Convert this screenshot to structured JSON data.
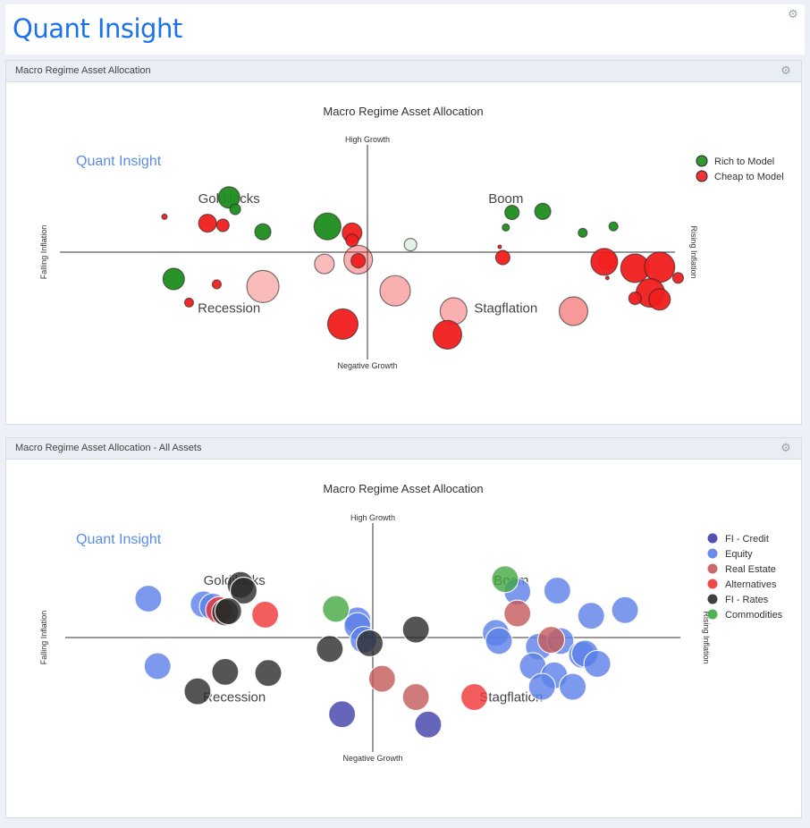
{
  "app": {
    "logo": "Quant Insight"
  },
  "panels": [
    {
      "title": "Macro Regime Asset Allocation"
    },
    {
      "title": "Macro Regime Asset Allocation - All Assets"
    }
  ],
  "chart_data": [
    {
      "type": "scatter",
      "title": "Macro Regime Asset Allocation",
      "watermark": "Quant Insight",
      "axis_labels": {
        "top": "High Growth",
        "bottom": "Negative Growth",
        "left": "Falling Inflation",
        "right": "Rising Inflation"
      },
      "quadrants": [
        "Goldilocks",
        "Boom",
        "Recession",
        "Stagflation"
      ],
      "xlim": [
        -1,
        1
      ],
      "ylim": [
        -1,
        1
      ],
      "legend_position": "top-right",
      "series": [
        {
          "name": "Rich to Model",
          "color": "#1e8c1e",
          "points": [
            {
              "x": -0.45,
              "y": 0.51,
              "s": 12
            },
            {
              "x": -0.43,
              "y": 0.4,
              "s": 6
            },
            {
              "x": -0.34,
              "y": 0.19,
              "s": 9
            },
            {
              "x": -0.13,
              "y": 0.24,
              "s": 15
            },
            {
              "x": 0.14,
              "y": 0.07,
              "s": 7,
              "a": 0.12
            },
            {
              "x": 0.47,
              "y": 0.37,
              "s": 8
            },
            {
              "x": 0.57,
              "y": 0.38,
              "s": 9
            },
            {
              "x": 0.7,
              "y": 0.18,
              "s": 5
            },
            {
              "x": 0.8,
              "y": 0.24,
              "s": 5
            },
            {
              "x": 0.45,
              "y": 0.23,
              "s": 4
            },
            {
              "x": -0.63,
              "y": -0.25,
              "s": 12
            }
          ]
        },
        {
          "name": "Cheap to Model",
          "color": "#f01d1d",
          "points": [
            {
              "x": -0.66,
              "y": 0.33,
              "s": 3
            },
            {
              "x": -0.52,
              "y": 0.27,
              "s": 10
            },
            {
              "x": -0.47,
              "y": 0.25,
              "s": 7
            },
            {
              "x": -0.05,
              "y": 0.18,
              "s": 11
            },
            {
              "x": -0.05,
              "y": 0.11,
              "s": 7
            },
            {
              "x": -0.03,
              "y": -0.07,
              "s": 16,
              "a": 0.35
            },
            {
              "x": -0.03,
              "y": -0.08,
              "s": 8
            },
            {
              "x": -0.14,
              "y": -0.11,
              "s": 11,
              "a": 0.3
            },
            {
              "x": -0.34,
              "y": -0.32,
              "s": 18,
              "a": 0.3
            },
            {
              "x": 0.09,
              "y": -0.36,
              "s": 17,
              "a": 0.35
            },
            {
              "x": -0.49,
              "y": -0.3,
              "s": 5
            },
            {
              "x": -0.58,
              "y": -0.47,
              "s": 5
            },
            {
              "x": 0.28,
              "y": -0.55,
              "s": 15,
              "a": 0.35
            },
            {
              "x": 0.67,
              "y": -0.55,
              "s": 16,
              "a": 0.45
            },
            {
              "x": -0.08,
              "y": -0.67,
              "s": 17
            },
            {
              "x": 0.26,
              "y": -0.77,
              "s": 16
            },
            {
              "x": 0.78,
              "y": -0.08,
              "s": 10,
              "a": 0.6
            },
            {
              "x": 0.77,
              "y": -0.09,
              "s": 15
            },
            {
              "x": 0.87,
              "y": -0.15,
              "s": 16
            },
            {
              "x": 0.95,
              "y": -0.14,
              "s": 17
            },
            {
              "x": 1.01,
              "y": -0.24,
              "s": 6
            },
            {
              "x": 0.92,
              "y": -0.38,
              "s": 16
            },
            {
              "x": 0.87,
              "y": -0.43,
              "s": 7
            },
            {
              "x": 0.95,
              "y": -0.44,
              "s": 12
            },
            {
              "x": 0.44,
              "y": -0.05,
              "s": 8
            },
            {
              "x": 0.43,
              "y": 0.05,
              "s": 2
            },
            {
              "x": 0.78,
              "y": -0.24,
              "s": 2
            }
          ]
        }
      ]
    },
    {
      "type": "scatter",
      "title": "Macro Regime Asset Allocation",
      "watermark": "Quant Insight",
      "axis_labels": {
        "top": "High Growth",
        "bottom": "Negative Growth",
        "left": "Falling Inflation",
        "right": "Rising Inflation"
      },
      "quadrants": [
        "Goldilocks",
        "Boom",
        "Recession",
        "Stagflation"
      ],
      "xlim": [
        -1,
        1
      ],
      "ylim": [
        -1,
        1
      ],
      "legend_position": "top-right",
      "series": [
        {
          "name": "FI - Credit",
          "color": "#3f40a8",
          "points": [
            {
              "x": -0.1,
              "y": -0.67
            },
            {
              "x": 0.18,
              "y": -0.76
            }
          ]
        },
        {
          "name": "Equity",
          "color": "#5b7fe8",
          "points": [
            {
              "x": -0.73,
              "y": 0.34
            },
            {
              "x": -0.55,
              "y": 0.29
            },
            {
              "x": -0.52,
              "y": 0.27
            },
            {
              "x": -0.05,
              "y": 0.15
            },
            {
              "x": -0.05,
              "y": 0.1
            },
            {
              "x": -0.03,
              "y": -0.02
            },
            {
              "x": -0.7,
              "y": -0.25
            },
            {
              "x": 0.47,
              "y": 0.4
            },
            {
              "x": 0.6,
              "y": 0.41
            },
            {
              "x": 0.71,
              "y": 0.19
            },
            {
              "x": 0.82,
              "y": 0.24
            },
            {
              "x": 0.4,
              "y": 0.04
            },
            {
              "x": 0.41,
              "y": -0.03
            },
            {
              "x": 0.54,
              "y": -0.08
            },
            {
              "x": 0.61,
              "y": -0.03
            },
            {
              "x": 0.52,
              "y": -0.25
            },
            {
              "x": 0.59,
              "y": -0.33
            },
            {
              "x": 0.55,
              "y": -0.43
            },
            {
              "x": 0.65,
              "y": -0.43
            },
            {
              "x": 0.68,
              "y": -0.15
            },
            {
              "x": 0.69,
              "y": -0.14
            },
            {
              "x": 0.73,
              "y": -0.23
            }
          ]
        },
        {
          "name": "Real Estate",
          "color": "#c45a5a",
          "points": [
            {
              "x": 0.47,
              "y": 0.21
            },
            {
              "x": 0.58,
              "y": -0.02
            },
            {
              "x": 0.03,
              "y": -0.36
            },
            {
              "x": 0.14,
              "y": -0.52
            }
          ]
        },
        {
          "name": "Alternatives",
          "color": "#f03535",
          "points": [
            {
              "x": -0.5,
              "y": 0.24
            },
            {
              "x": -0.35,
              "y": 0.2
            },
            {
              "x": 0.33,
              "y": -0.52
            }
          ]
        },
        {
          "name": "FI - Rates",
          "color": "#2a2a2a",
          "points": [
            {
              "x": -0.43,
              "y": 0.46
            },
            {
              "x": -0.42,
              "y": 0.41
            },
            {
              "x": -0.48,
              "y": 0.22
            },
            {
              "x": -0.47,
              "y": 0.23
            },
            {
              "x": -0.01,
              "y": -0.05
            },
            {
              "x": -0.14,
              "y": -0.1
            },
            {
              "x": 0.14,
              "y": 0.07
            },
            {
              "x": -0.48,
              "y": -0.3
            },
            {
              "x": -0.34,
              "y": -0.31
            },
            {
              "x": -0.57,
              "y": -0.47
            }
          ]
        },
        {
          "name": "Commodities",
          "color": "#43a843",
          "points": [
            {
              "x": -0.12,
              "y": 0.25
            },
            {
              "x": 0.43,
              "y": 0.51
            }
          ]
        }
      ]
    }
  ]
}
